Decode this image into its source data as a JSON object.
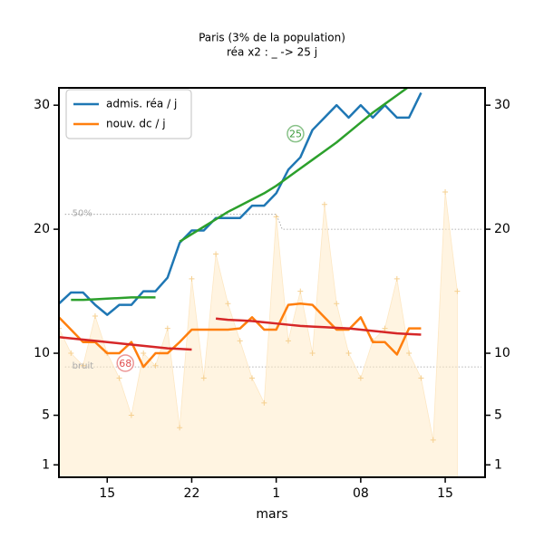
{
  "chart_data": {
    "type": "line",
    "title": "Paris (3% de la population)",
    "subtitle": "réa x2 : _ -> 25 j",
    "xlabel": "mars",
    "x": [
      -4,
      -3,
      -2,
      -1,
      0,
      1,
      2,
      3,
      4,
      5,
      6,
      7,
      8,
      9,
      10,
      11,
      12,
      13,
      14,
      15,
      16,
      17,
      18,
      19,
      20,
      21,
      22,
      23,
      24,
      25,
      26,
      27,
      28,
      29
    ],
    "xlim": [
      -4,
      31.3
    ],
    "xticks": [
      {
        "value": 0,
        "label": "15"
      },
      {
        "value": 7,
        "label": "22"
      },
      {
        "value": 14,
        "label": "1"
      },
      {
        "value": 21,
        "label": "08"
      },
      {
        "value": 28,
        "label": "15"
      }
    ],
    "ylim": [
      0,
      31.4
    ],
    "yticks": [
      1,
      5,
      10,
      20,
      30
    ],
    "legend": "upper left",
    "series": [
      {
        "name": "admis. réa / j",
        "color": "#1f77b4",
        "values": [
          14.0,
          14.9,
          14.9,
          13.9,
          13.1,
          13.9,
          13.9,
          15.0,
          15.0,
          16.1,
          18.9,
          19.9,
          19.9,
          20.9,
          20.9,
          20.9,
          21.9,
          21.9,
          22.9,
          24.8,
          25.8,
          28.0,
          29.0,
          30.0,
          29.0,
          30.0,
          29.0,
          30.0,
          29.0,
          29.0,
          31.0,
          null,
          null,
          null
        ]
      },
      {
        "name": "nouv. dc / j",
        "color": "#ff7f0e",
        "values": [
          12.9,
          11.9,
          10.9,
          10.9,
          10.0,
          10.0,
          10.9,
          8.9,
          10.0,
          10.0,
          10.9,
          11.9,
          11.9,
          11.9,
          11.9,
          12.0,
          12.9,
          11.9,
          11.9,
          13.9,
          14.0,
          13.9,
          12.9,
          11.9,
          11.9,
          12.9,
          10.9,
          10.9,
          9.9,
          12.0,
          12.0,
          null,
          null,
          null
        ]
      },
      {
        "color": "#2ca02c",
        "values": [
          null,
          14.3,
          14.3,
          14.35,
          14.4,
          14.45,
          14.5,
          14.5,
          14.5,
          null,
          19.0,
          19.6,
          20.2,
          20.8,
          21.4,
          21.9,
          22.4,
          22.9,
          23.5,
          24.2,
          24.9,
          25.6,
          26.3,
          27.0,
          27.8,
          28.6,
          29.4,
          30.1,
          30.8,
          31.5,
          null,
          null,
          null,
          null
        ]
      },
      {
        "color": "#d62728",
        "values": [
          11.3,
          11.2,
          11.1,
          11.0,
          10.9,
          10.8,
          10.7,
          10.6,
          10.5,
          10.4,
          10.35,
          10.3,
          null,
          12.8,
          12.7,
          12.65,
          12.6,
          12.5,
          12.4,
          12.3,
          12.2,
          12.15,
          12.1,
          12.05,
          12.0,
          11.9,
          11.8,
          11.7,
          11.6,
          11.55,
          11.5,
          null,
          null,
          null
        ]
      },
      {
        "type": "area",
        "color": "#ffe9c4",
        "values": [
          12,
          10,
          9,
          13,
          10,
          8,
          5,
          10,
          9,
          12,
          4,
          16,
          8,
          18,
          14,
          11,
          8,
          6,
          21,
          11,
          15,
          10,
          22,
          14,
          10,
          8,
          11,
          12,
          16,
          10,
          8,
          3,
          23,
          15
        ]
      }
    ],
    "reference_lines": [
      {
        "label": "50%",
        "x": [
          -3.5,
          14,
          14.5,
          31
        ],
        "y": [
          21.2,
          21.2,
          20.0,
          20.0
        ]
      },
      {
        "label": "bruit",
        "x": [
          -3.5,
          31
        ],
        "y": [
          8.9,
          8.9
        ]
      }
    ],
    "annotations": [
      {
        "text": "68",
        "x": 1.5,
        "y": 9.2,
        "color": "#e05050"
      },
      {
        "text": "25",
        "x": 15.6,
        "y": 27.7,
        "color": "#3a9a3a"
      }
    ]
  }
}
